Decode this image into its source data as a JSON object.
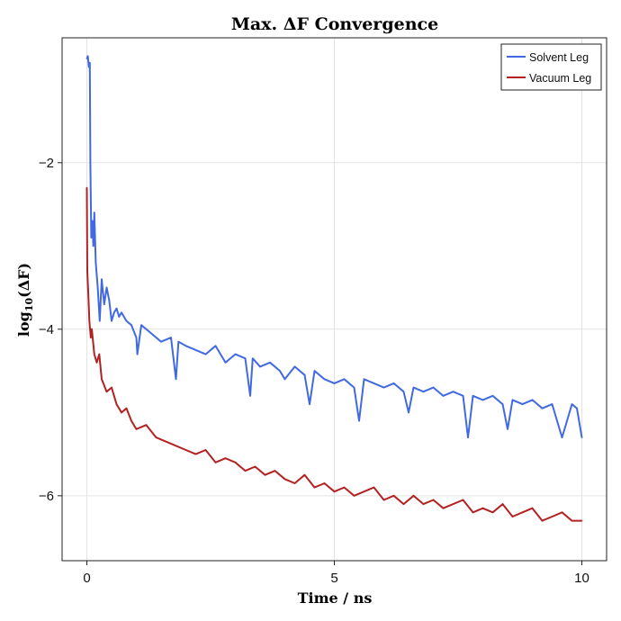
{
  "chart_data": {
    "type": "line",
    "title": "Max. ΔF Convergence",
    "xlabel": "Time / ns",
    "ylabel": "log10(ΔF)",
    "ylabel_parts": {
      "base": "log",
      "sub": "10",
      "arg": "(ΔF)"
    },
    "xlim": [
      -0.5,
      10.5
    ],
    "ylim": [
      -6.78,
      -0.5
    ],
    "xticks": [
      0,
      5,
      10
    ],
    "xtick_labels": [
      "0",
      "5",
      "10"
    ],
    "yticks": [
      -2,
      -4,
      -6
    ],
    "ytick_labels": [
      "−2",
      "−4",
      "−6"
    ],
    "grid": true,
    "legend_position": "top-right",
    "series": [
      {
        "name": "Solvent Leg",
        "color": "#4169e1",
        "x": [
          0.0,
          0.02,
          0.04,
          0.06,
          0.07,
          0.09,
          0.11,
          0.13,
          0.15,
          0.18,
          0.22,
          0.26,
          0.3,
          0.35,
          0.4,
          0.45,
          0.5,
          0.55,
          0.6,
          0.65,
          0.7,
          0.8,
          0.9,
          1.0,
          1.02,
          1.1,
          1.3,
          1.5,
          1.7,
          1.8,
          1.85,
          2.0,
          2.2,
          2.4,
          2.6,
          2.8,
          3.0,
          3.2,
          3.3,
          3.35,
          3.5,
          3.7,
          3.9,
          4.0,
          4.2,
          4.4,
          4.5,
          4.6,
          4.8,
          5.0,
          5.2,
          5.4,
          5.5,
          5.6,
          5.8,
          6.0,
          6.2,
          6.4,
          6.5,
          6.6,
          6.8,
          7.0,
          7.2,
          7.4,
          7.6,
          7.7,
          7.8,
          8.0,
          8.2,
          8.4,
          8.5,
          8.6,
          8.8,
          9.0,
          9.2,
          9.4,
          9.6,
          9.8,
          9.9,
          10.0
        ],
        "y": [
          -0.75,
          -0.72,
          -0.85,
          -0.8,
          -2.0,
          -2.9,
          -2.7,
          -3.0,
          -2.6,
          -3.2,
          -3.5,
          -3.9,
          -3.4,
          -3.7,
          -3.5,
          -3.65,
          -3.9,
          -3.8,
          -3.75,
          -3.85,
          -3.8,
          -3.9,
          -3.95,
          -4.1,
          -4.3,
          -3.95,
          -4.05,
          -4.15,
          -4.1,
          -4.6,
          -4.15,
          -4.2,
          -4.25,
          -4.3,
          -4.2,
          -4.4,
          -4.3,
          -4.35,
          -4.8,
          -4.35,
          -4.45,
          -4.4,
          -4.5,
          -4.6,
          -4.45,
          -4.55,
          -4.9,
          -4.5,
          -4.6,
          -4.65,
          -4.6,
          -4.7,
          -5.1,
          -4.6,
          -4.65,
          -4.7,
          -4.65,
          -4.75,
          -5.0,
          -4.7,
          -4.75,
          -4.7,
          -4.8,
          -4.75,
          -4.8,
          -5.3,
          -4.8,
          -4.85,
          -4.8,
          -4.9,
          -5.2,
          -4.85,
          -4.9,
          -4.85,
          -4.95,
          -4.9,
          -5.3,
          -4.9,
          -4.95,
          -5.3
        ]
      },
      {
        "name": "Vacuum Leg",
        "color": "#b22222",
        "x": [
          0.0,
          0.01,
          0.03,
          0.05,
          0.08,
          0.1,
          0.15,
          0.2,
          0.25,
          0.3,
          0.4,
          0.5,
          0.6,
          0.7,
          0.8,
          0.9,
          1.0,
          1.2,
          1.4,
          1.6,
          1.8,
          2.0,
          2.2,
          2.4,
          2.6,
          2.8,
          3.0,
          3.2,
          3.4,
          3.6,
          3.8,
          4.0,
          4.2,
          4.4,
          4.6,
          4.8,
          5.0,
          5.2,
          5.4,
          5.6,
          5.8,
          6.0,
          6.2,
          6.4,
          6.6,
          6.8,
          7.0,
          7.2,
          7.4,
          7.6,
          7.8,
          8.0,
          8.2,
          8.4,
          8.6,
          8.8,
          9.0,
          9.2,
          9.4,
          9.6,
          9.8,
          10.0
        ],
        "y": [
          -2.3,
          -3.3,
          -3.6,
          -3.9,
          -4.1,
          -4.0,
          -4.3,
          -4.4,
          -4.3,
          -4.6,
          -4.75,
          -4.7,
          -4.9,
          -5.0,
          -4.95,
          -5.1,
          -5.2,
          -5.15,
          -5.3,
          -5.35,
          -5.4,
          -5.45,
          -5.5,
          -5.45,
          -5.6,
          -5.55,
          -5.6,
          -5.7,
          -5.65,
          -5.75,
          -5.7,
          -5.8,
          -5.85,
          -5.75,
          -5.9,
          -5.85,
          -5.95,
          -5.9,
          -6.0,
          -5.95,
          -5.9,
          -6.05,
          -6.0,
          -6.1,
          -6.0,
          -6.1,
          -6.05,
          -6.15,
          -6.1,
          -6.05,
          -6.2,
          -6.15,
          -6.2,
          -6.1,
          -6.25,
          -6.2,
          -6.15,
          -6.3,
          -6.25,
          -6.2,
          -6.3,
          -6.3
        ]
      }
    ]
  }
}
